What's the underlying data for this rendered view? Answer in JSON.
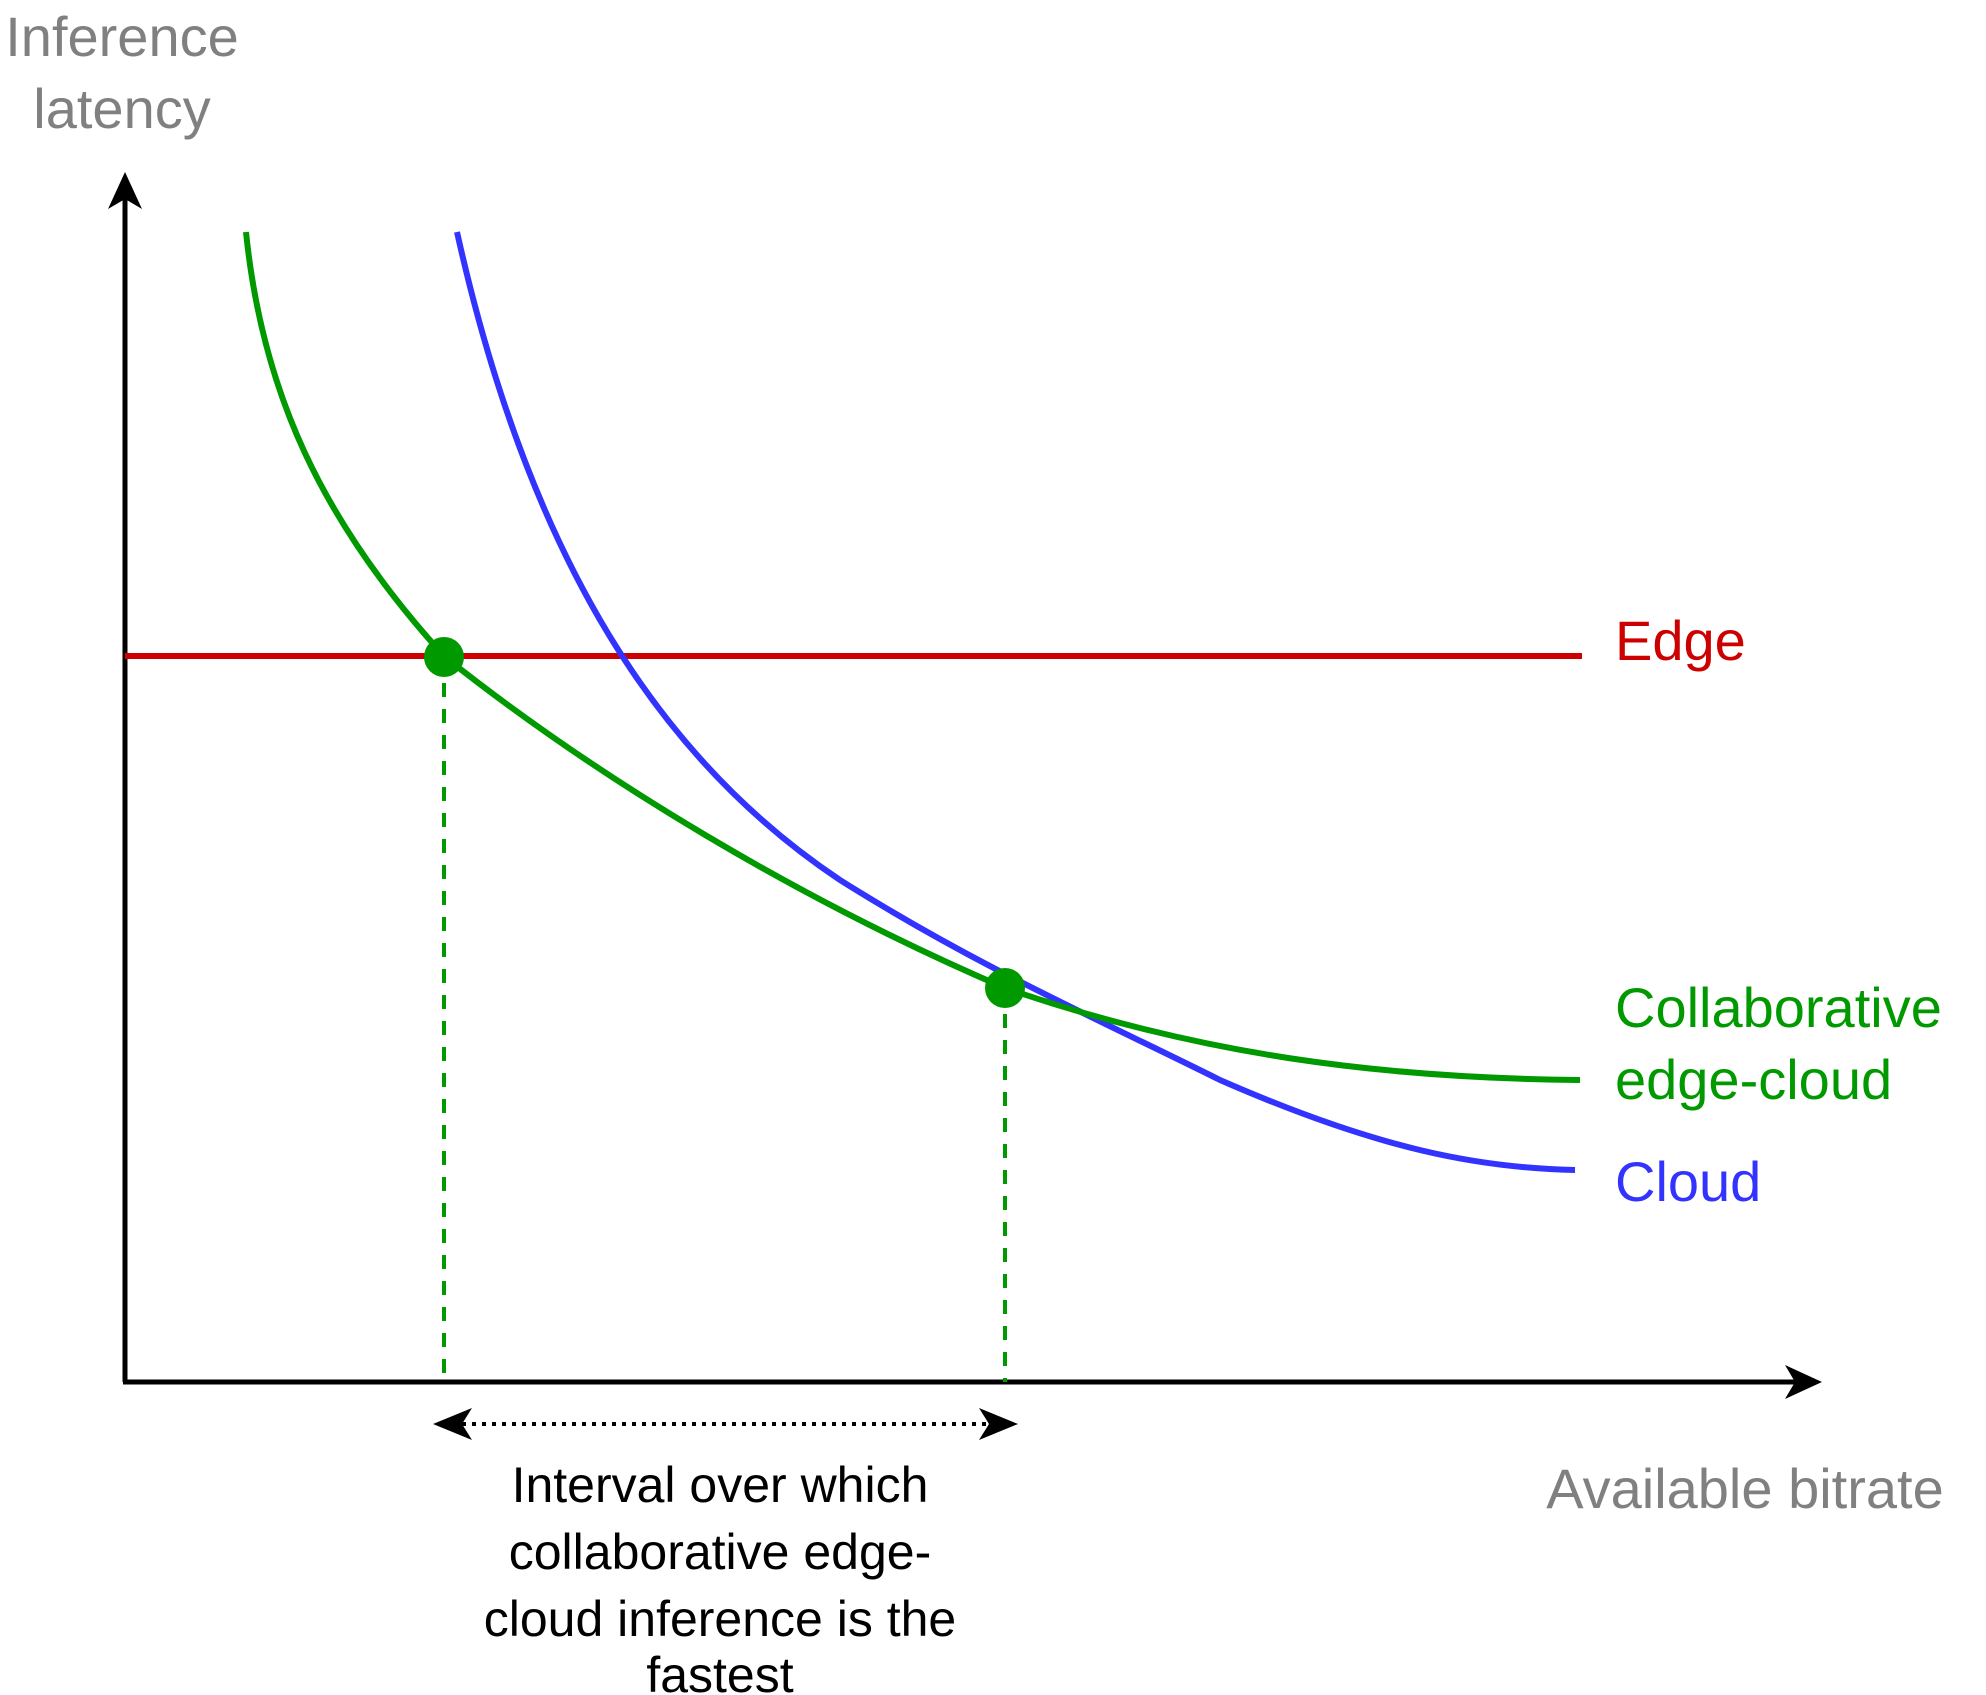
{
  "axes": {
    "y_label_line1": "Inference",
    "y_label_line2": "latency",
    "x_label": "Available bitrate",
    "label_color": "#808080",
    "axis_color": "#000000"
  },
  "series": {
    "edge": {
      "label": "Edge",
      "color": "#cc0000"
    },
    "collaborative": {
      "label_line1": "Collaborative",
      "label_line2": "edge-cloud",
      "color": "#009900"
    },
    "cloud": {
      "label": "Cloud",
      "color": "#3333ff"
    }
  },
  "annotation": {
    "line1": "Interval over which",
    "line2": "collaborative edge-",
    "line3": "cloud inference is the",
    "line4": "fastest"
  }
}
